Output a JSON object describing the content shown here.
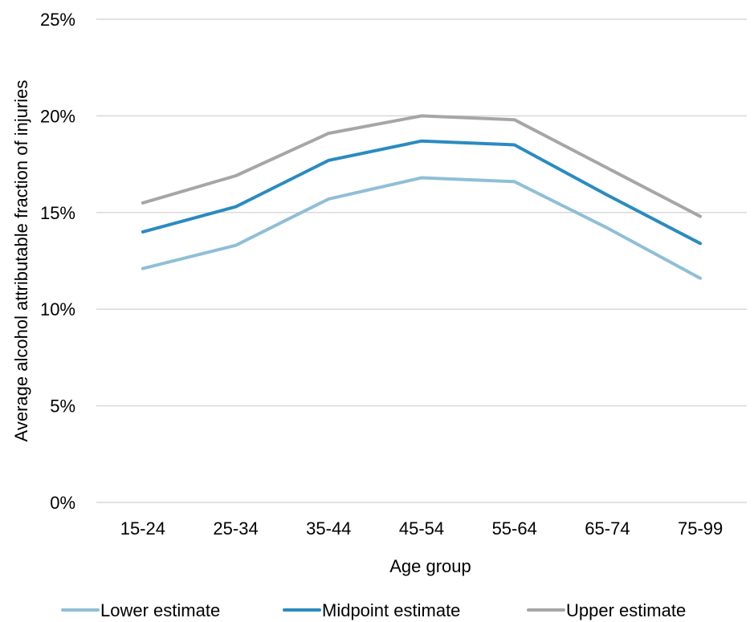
{
  "chart_data": {
    "type": "line",
    "title": "",
    "xlabel": "Age group",
    "ylabel": "Average alcohol attributable fraction of injuries",
    "categories": [
      "15-24",
      "25-34",
      "35-44",
      "45-54",
      "55-64",
      "65-74",
      "75-99"
    ],
    "y_ticks": [
      "0%",
      "5%",
      "10%",
      "15%",
      "20%",
      "25%"
    ],
    "ylim": [
      0,
      25
    ],
    "grid": true,
    "legend_position": "bottom",
    "series": [
      {
        "name": "Lower estimate",
        "color": "#8fbfd6",
        "values": [
          12.1,
          13.3,
          15.7,
          16.8,
          16.6,
          14.2,
          11.6
        ]
      },
      {
        "name": "Midpoint estimate",
        "color": "#2a8bc0",
        "values": [
          14.0,
          15.3,
          17.7,
          18.7,
          18.5,
          15.9,
          13.4
        ]
      },
      {
        "name": "Upper estimate",
        "color": "#a6a6a6",
        "values": [
          15.5,
          16.9,
          19.1,
          20.0,
          19.8,
          17.3,
          14.8
        ]
      }
    ]
  }
}
